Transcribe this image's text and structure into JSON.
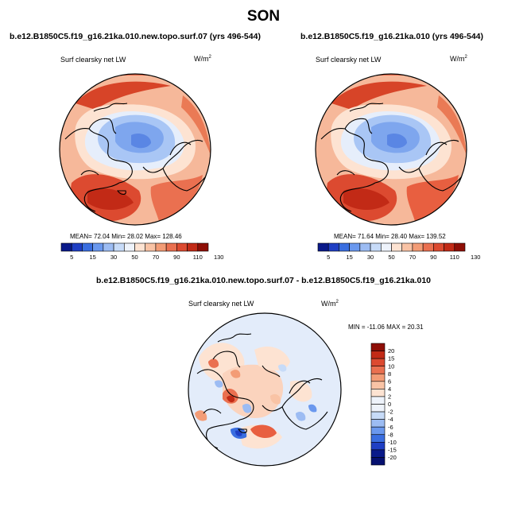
{
  "season_title": "SON",
  "panels": [
    {
      "case": "b.e12.B1850C5.f19_g16.21ka.010.new.topo.surf.07 (yrs 496-544)",
      "field": "Surf clearsky net LW",
      "units": "W/m",
      "units_exp": "2",
      "stats": "MEAN= 72.04 Min= 28.02 Max= 128.46"
    },
    {
      "case": "b.e12.B1850C5.f19_g16.21ka.010 (yrs 496-544)",
      "field": "Surf clearsky net LW",
      "units": "W/m",
      "units_exp": "2",
      "stats": "MEAN= 71.64 Min= 28.40 Max= 139.52"
    }
  ],
  "diff_panel": {
    "case": "b.e12.B1850C5.f19_g16.21ka.010.new.topo.surf.07 - b.e12.B1850C5.f19_g16.21ka.010",
    "field": "Surf clearsky net LW",
    "units": "W/m",
    "units_exp": "2",
    "stats": "MIN = -11.06 MAX = 20.31"
  },
  "horizontal_colorbar": {
    "labels": [
      "5",
      "15",
      "30",
      "50",
      "70",
      "90",
      "110",
      "130"
    ],
    "colors": [
      "#0a1a8a",
      "#1f3fc4",
      "#3a6ee0",
      "#6a98ee",
      "#9cbcf3",
      "#c7dbf8",
      "#eef3fb",
      "#fde3d2",
      "#f9c3a5",
      "#f39c76",
      "#ea7050",
      "#dc4a30",
      "#c22a16",
      "#8e0e06"
    ]
  },
  "vertical_colorbar": {
    "labels": [
      "20",
      "15",
      "10",
      "8",
      "6",
      "4",
      "2",
      "0",
      "-2",
      "-4",
      "-6",
      "-8",
      "-10",
      "-15",
      "-20"
    ],
    "colors": [
      "#8e0e06",
      "#c22a16",
      "#dc4a30",
      "#ea7050",
      "#f39c76",
      "#f9c3a5",
      "#fde3d2",
      "#eef3fb",
      "#eef3fb",
      "#c7dbf8",
      "#9cbcf3",
      "#6a98ee",
      "#3a6ee0",
      "#1f3fc4",
      "#0a1a8a",
      "#061070"
    ]
  }
}
